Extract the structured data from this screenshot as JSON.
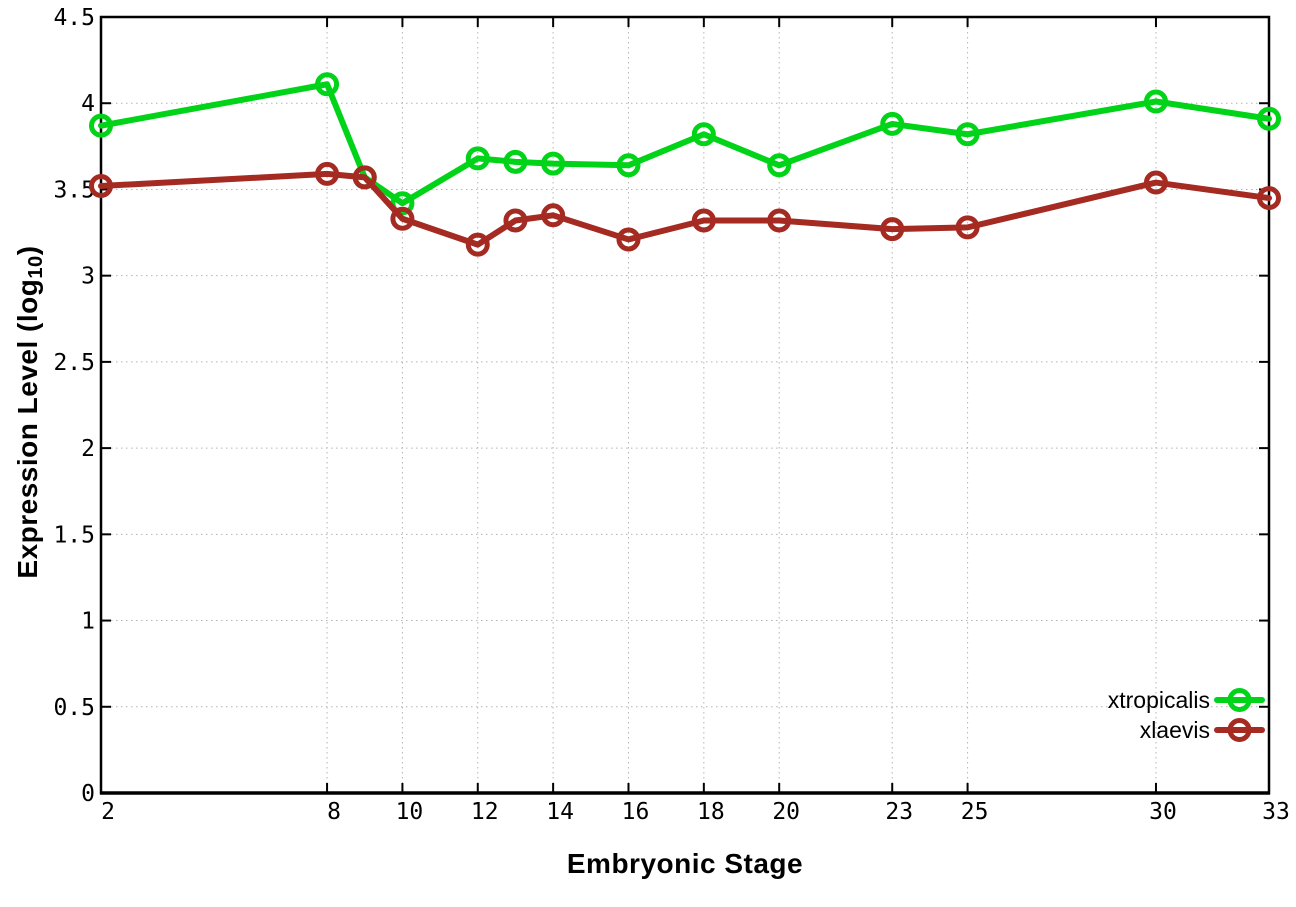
{
  "figure": {
    "background": "#ffffff",
    "border_color": "#000000",
    "grid_color": "#b4b4b4"
  },
  "chart_data": {
    "type": "line",
    "title": "",
    "xlabel": "Embryonic Stage",
    "ylabel": "Expression Level (log10)",
    "ylabel_parts": {
      "pre": "Expression Level (log",
      "sub": "10",
      "post": ")"
    },
    "xlim": [
      2,
      33
    ],
    "ylim": [
      0,
      4.5
    ],
    "grid": true,
    "legend_position": "bottom-right",
    "marker": "open-circle",
    "x": [
      2,
      8,
      9,
      10,
      12,
      13,
      14,
      16,
      18,
      20,
      23,
      25,
      30,
      33
    ],
    "xticks": [
      2,
      8,
      10,
      12,
      14,
      16,
      18,
      20,
      23,
      25,
      30,
      33
    ],
    "xticklabels": [
      "2",
      "8",
      "10",
      "12",
      "14",
      "16",
      "18",
      "20",
      "23",
      "25",
      "30",
      "33"
    ],
    "yticks": [
      0,
      0.5,
      1,
      1.5,
      2,
      2.5,
      3,
      3.5,
      4,
      4.5
    ],
    "yticklabels": [
      "0",
      "0.5",
      "1",
      "1.5",
      "2",
      "2.5",
      "3",
      "3.5",
      "4",
      "4.5"
    ],
    "series": [
      {
        "name": "xtropicalis",
        "color": "#00d318",
        "values": [
          3.87,
          4.11,
          3.57,
          3.42,
          3.68,
          3.66,
          3.65,
          3.64,
          3.82,
          3.64,
          3.88,
          3.82,
          4.01,
          3.91
        ]
      },
      {
        "name": "xlaevis",
        "color": "#a42a22",
        "values": [
          3.52,
          3.59,
          3.57,
          3.33,
          3.18,
          3.32,
          3.35,
          3.21,
          3.32,
          3.32,
          3.27,
          3.28,
          3.54,
          3.45
        ]
      }
    ]
  }
}
